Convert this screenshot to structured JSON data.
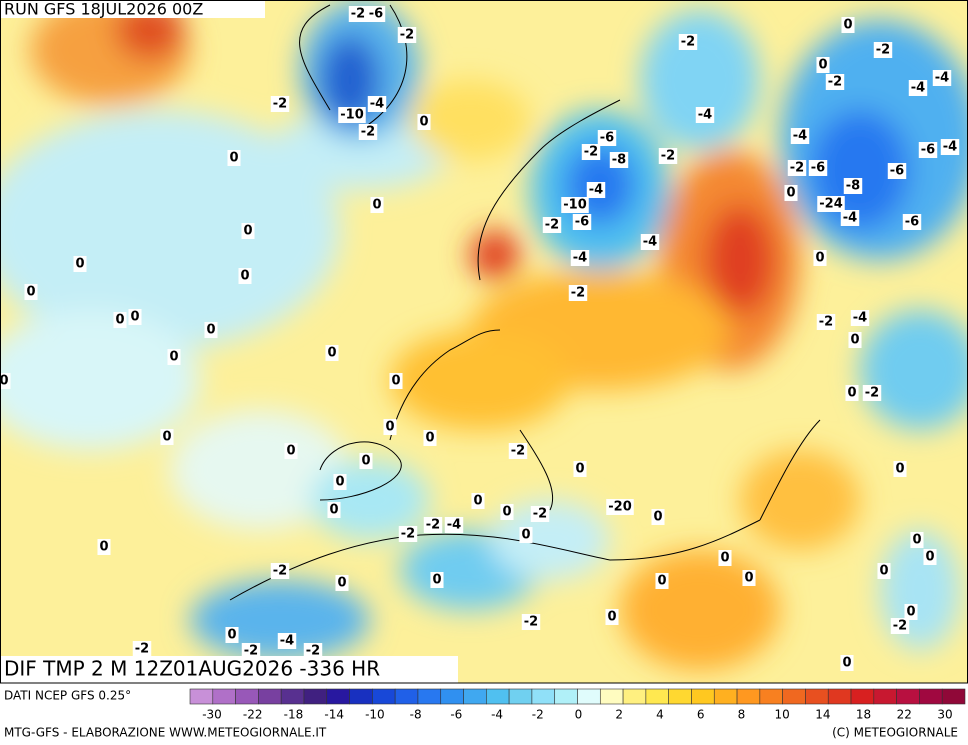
{
  "header": {
    "run": "RUN GFS 18JUL2026 00Z",
    "field": "DIF TMP 2 M 12Z01AUG2026 -336 HR"
  },
  "footer": {
    "source": "DATI NCEP GFS 0.25°",
    "credit": "MTG-GFS - ELABORAZIONE WWW.METEOGIORNALE.IT",
    "copyright": "(C) METEOGIORNALE"
  },
  "map": {
    "contour_labels": [
      "-2",
      "-6",
      "0",
      "-2",
      "-2",
      "-2",
      "0",
      "-2",
      "-4",
      "-4",
      "-2",
      "-10",
      "-4",
      "-2",
      "0",
      "-4",
      "-4",
      "-6",
      "0",
      "-2",
      "-8",
      "-2",
      "-6",
      "-4",
      "-2",
      "-6",
      "-6",
      "-8",
      "-4",
      "0",
      "-10",
      "-2",
      "-6",
      "-24",
      "0",
      "-4",
      "-6",
      "0",
      "-4",
      "-4",
      "0",
      "0",
      "0",
      "0",
      "-2",
      "0",
      "0",
      "0",
      "-2",
      "-4",
      "0",
      "0",
      "0",
      "0",
      "0",
      "0",
      "-2",
      "0",
      "0",
      "0",
      "0",
      "-2",
      "0",
      "0",
      "0",
      "0",
      "0",
      "0",
      "0",
      "-2",
      "-20",
      "0",
      "-2",
      "-2",
      "-4",
      "0",
      "0",
      "0",
      "0",
      "0",
      "-2",
      "0",
      "0",
      "0",
      "0",
      "0",
      "0",
      "0",
      "-2",
      "-2",
      "-4",
      "0",
      "-2",
      "-2",
      "-2",
      "0"
    ]
  },
  "colorbar": {
    "colors": [
      "#c890d8",
      "#b070c8",
      "#9858b8",
      "#7840a0",
      "#583090",
      "#402080",
      "#2818a0",
      "#1830c0",
      "#1848d8",
      "#2060e8",
      "#2878f0",
      "#3090f0",
      "#40a8f0",
      "#50c0f0",
      "#70d0f0",
      "#90e0f8",
      "#b0f0f8",
      "#e0fcfc",
      "#fffcc0",
      "#fff080",
      "#ffe850",
      "#ffd830",
      "#ffc820",
      "#ffb020",
      "#ff9820",
      "#f88020",
      "#f06820",
      "#e85020",
      "#e03820",
      "#d82020",
      "#c81830",
      "#b81040",
      "#a00840",
      "#900838"
    ],
    "ticks": [
      -30,
      -22,
      -18,
      -14,
      -10,
      -8,
      -6,
      -4,
      -2,
      0,
      2,
      4,
      6,
      8,
      10,
      14,
      18,
      22,
      30
    ]
  }
}
